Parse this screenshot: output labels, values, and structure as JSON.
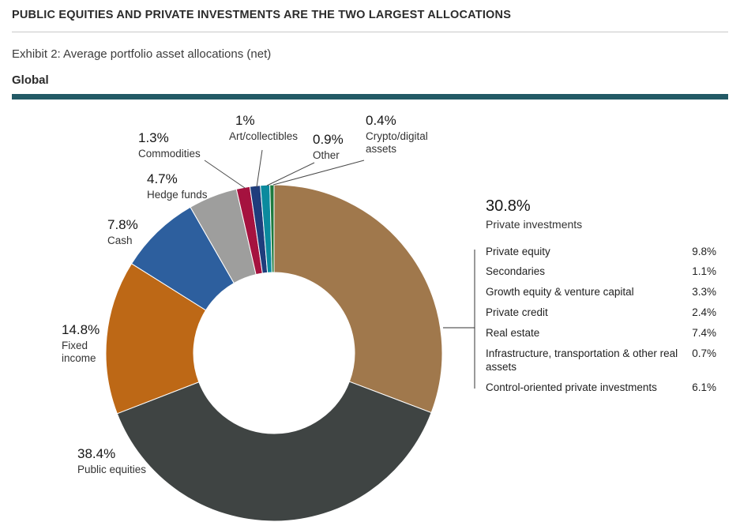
{
  "header": {
    "title": "PUBLIC EQUITIES AND PRIVATE INVESTMENTS ARE THE TWO LARGEST ALLOCATIONS",
    "exhibit": "Exhibit 2: Average portfolio asset allocations (net)",
    "region": "Global"
  },
  "accent_colors": {
    "teal_bar": "#235a66",
    "rule": "#c9c9c9"
  },
  "chart_data": {
    "type": "pie",
    "subtype": "donut",
    "title": "Average portfolio asset allocations (net)",
    "region": "Global",
    "start_angle": "top",
    "direction": "clockwise",
    "legend_position": "around-chart-callouts",
    "segments": [
      {
        "label": "Private investments",
        "value_pct": 30.8,
        "display": "30.8%",
        "color": "#a0784c"
      },
      {
        "label": "Public equities",
        "value_pct": 38.4,
        "display": "38.4%",
        "color": "#3f4443"
      },
      {
        "label": "Fixed income",
        "value_pct": 14.8,
        "display": "14.8%",
        "color": "#bd6816"
      },
      {
        "label": "Cash",
        "value_pct": 7.8,
        "display": "7.8%",
        "color": "#2d5f9e"
      },
      {
        "label": "Hedge funds",
        "value_pct": 4.7,
        "display": "4.7%",
        "color": "#9e9e9d"
      },
      {
        "label": "Commodities",
        "value_pct": 1.3,
        "display": "1.3%",
        "color": "#a5123f"
      },
      {
        "label": "Art/collectibles",
        "value_pct": 1.0,
        "display": "1%",
        "color": "#1f3d7c"
      },
      {
        "label": "Other",
        "value_pct": 0.9,
        "display": "0.9%",
        "color": "#0b8a9e"
      },
      {
        "label": "Crypto/digital assets",
        "value_pct": 0.4,
        "display": "0.4%",
        "color": "#1d7a3e"
      }
    ],
    "breakdown": {
      "parent": "Private investments",
      "parent_display": "30.8%",
      "rows": [
        {
          "label": "Private equity",
          "value": "9.8%"
        },
        {
          "label": "Secondaries",
          "value": "1.1%"
        },
        {
          "label": "Growth equity & venture capital",
          "value": "3.3%"
        },
        {
          "label": "Private credit",
          "value": "2.4%"
        },
        {
          "label": "Real estate",
          "value": "7.4%"
        },
        {
          "label": "Infrastructure, transportation & other real assets",
          "value": "0.7%"
        },
        {
          "label": "Control-oriented private investments",
          "value": "6.1%"
        }
      ]
    }
  }
}
